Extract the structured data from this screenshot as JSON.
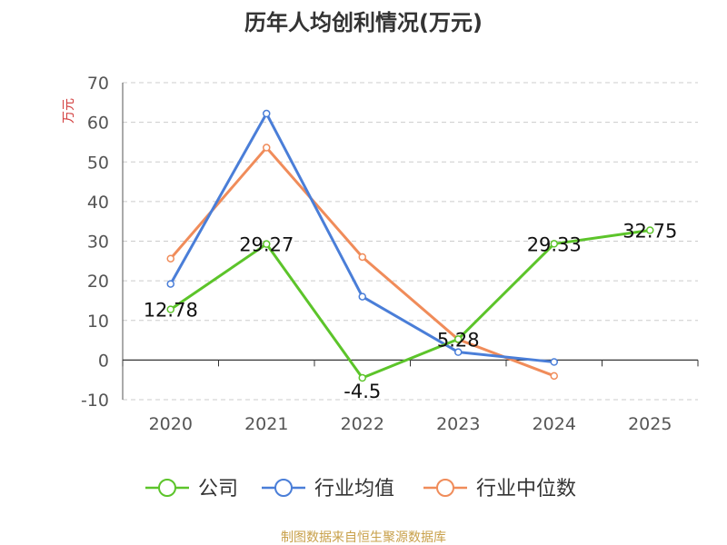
{
  "chart_data": {
    "type": "line",
    "title": "历年人均创利情况(万元)",
    "ylabel": "万元",
    "xlabel": "",
    "categories": [
      "2020",
      "2021",
      "2022",
      "2023",
      "2024",
      "2025"
    ],
    "ylim": [
      -10,
      70
    ],
    "yticks": [
      "-10",
      "0",
      "10",
      "20",
      "30",
      "40",
      "50",
      "60",
      "70"
    ],
    "grid": true,
    "legend_position": "bottom",
    "series": [
      {
        "name": "公司",
        "color": "#5cc42a",
        "values": [
          12.78,
          29.27,
          -4.5,
          5.28,
          29.33,
          32.75
        ],
        "labels": [
          "12.78",
          "29.27",
          "-4.5",
          "5.28",
          "29.33",
          "32.75"
        ]
      },
      {
        "name": "行业均值",
        "color": "#4a7ed8",
        "values": [
          19.2,
          62.2,
          16,
          2,
          -0.5,
          null
        ]
      },
      {
        "name": "行业中位数",
        "color": "#f08c5a",
        "values": [
          25.6,
          53.6,
          26,
          5.2,
          -4,
          null
        ]
      }
    ]
  },
  "source": "制图数据来自恒生聚源数据库"
}
